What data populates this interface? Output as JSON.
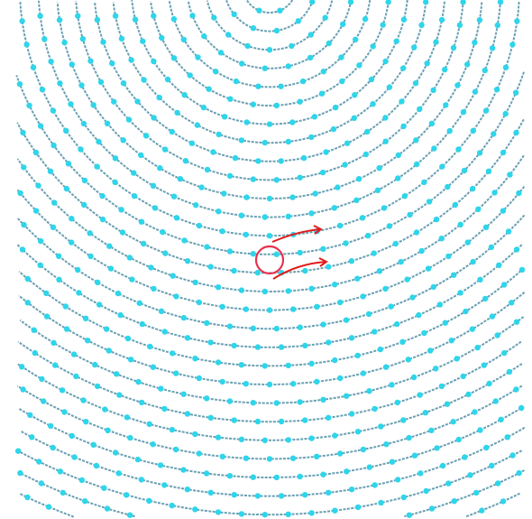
{
  "pattern": {
    "type": "concentric-arcs-with-dots",
    "ring_count": 30,
    "colors": {
      "background": "#ffffff",
      "arc": "#4f8fa6",
      "dot": "#2fd5ea",
      "highlight_circle": "#e8324f",
      "arrows": "#e01b1b"
    }
  },
  "annotation": {
    "highlight": "circle-marker",
    "arrows": [
      "upper-arrow",
      "lower-arrow"
    ]
  }
}
